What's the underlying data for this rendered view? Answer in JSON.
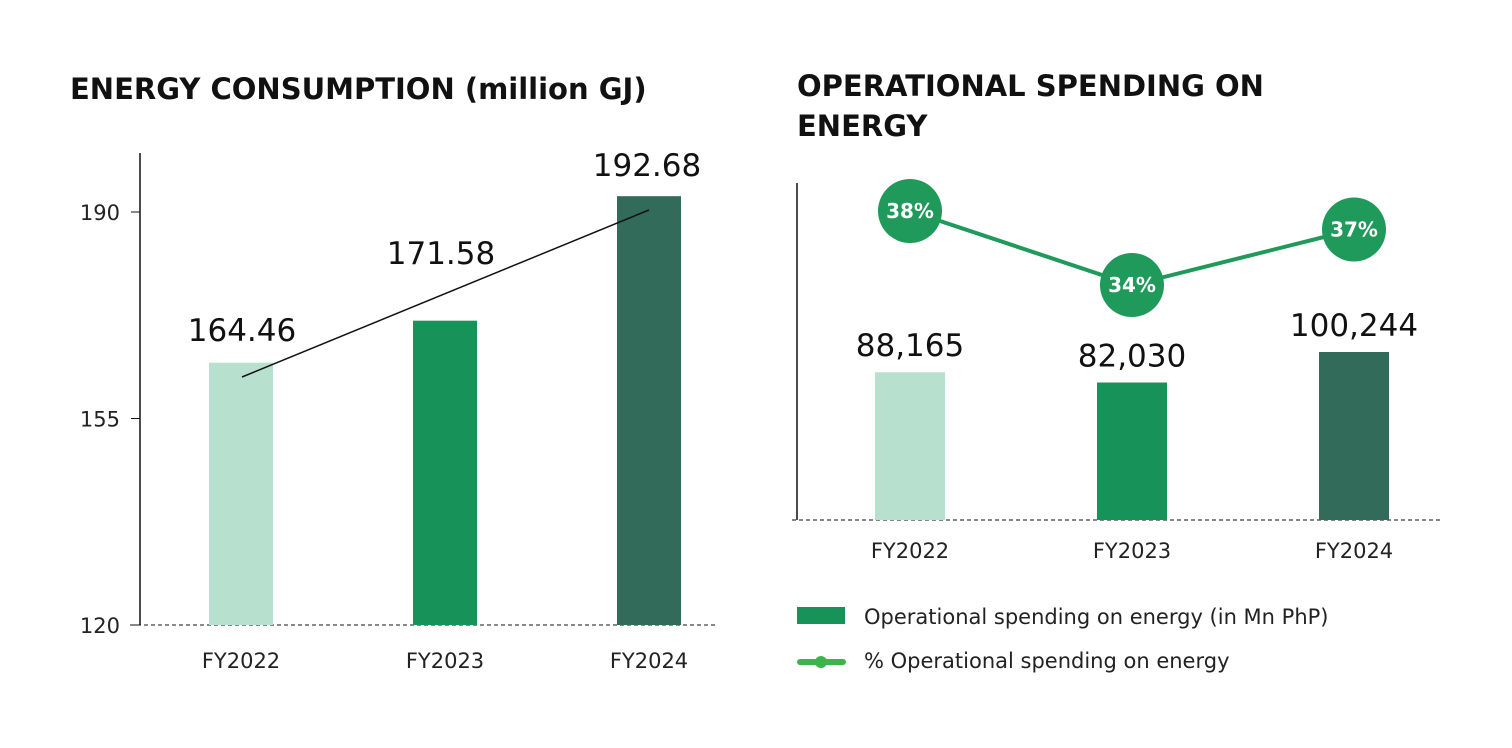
{
  "chart_data": [
    {
      "type": "bar",
      "title": "ENERGY CONSUMPTION (million GJ)",
      "categories": [
        "FY2022",
        "FY2023",
        "FY2024"
      ],
      "values": [
        164.46,
        171.58,
        192.68
      ],
      "value_labels": [
        "164.46",
        "171.58",
        "192.68"
      ],
      "yticks": [
        "120",
        "155",
        "190"
      ],
      "ylim": [
        120,
        197
      ],
      "trendline": true,
      "colors": [
        "#b7e0cf",
        "#17935a",
        "#336b5b"
      ]
    },
    {
      "type": "bar",
      "title_lines": [
        "OPERATIONAL SPENDING ON",
        "ENERGY"
      ],
      "categories": [
        "FY2022",
        "FY2023",
        "FY2024"
      ],
      "series": [
        {
          "name": "Operational spending on energy (in Mn PhP)",
          "values": [
            88165,
            82030,
            100244
          ],
          "labels": [
            "88,165",
            "82,030",
            "100,244"
          ]
        },
        {
          "name": "% Operational spending on energy",
          "type": "line",
          "values": [
            38,
            34,
            37
          ],
          "labels": [
            "38%",
            "34%",
            "37%"
          ]
        }
      ],
      "colors": [
        "#b7e0cf",
        "#17935a",
        "#336b5b"
      ],
      "line_color": "#1f9a5a",
      "legend_line_color": "#3cb44a",
      "legend": "bottom"
    }
  ]
}
